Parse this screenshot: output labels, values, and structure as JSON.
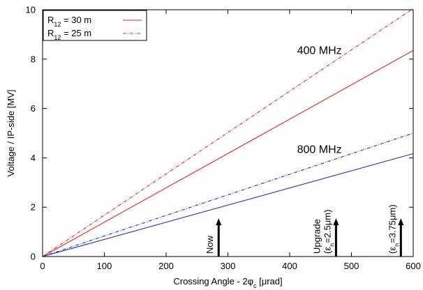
{
  "chart_data": {
    "type": "line",
    "xlabel": "Crossing Angle - 2φc  [μrad]",
    "xlabel_parts": {
      "before": "Crossing Angle - 2φ",
      "sub": "c",
      "after": "  [μrad]"
    },
    "ylabel": "Voltage / IP-side [MV]",
    "xlim": [
      0,
      600
    ],
    "ylim": [
      0,
      10
    ],
    "x_ticks": [
      0,
      100,
      200,
      300,
      400,
      500,
      600
    ],
    "y_ticks": [
      0,
      2,
      4,
      6,
      8,
      10
    ],
    "grid": false,
    "legend_position": "top-left",
    "legend": [
      {
        "label": "R12 = 30 m",
        "main": "R",
        "sub": "12",
        "rest": " = 30 m",
        "style": "solid",
        "color": "#e8231f"
      },
      {
        "label": "R12 = 25 m",
        "main": "R",
        "sub": "12",
        "rest": " = 25 m",
        "style": "dashdot",
        "color": "#e8231f"
      }
    ],
    "series": [
      {
        "group": "400 MHz",
        "radius": "R12 = 30 m",
        "color": "#e8231f",
        "style": "solid",
        "x": [
          0,
          600
        ],
        "y": [
          0,
          8.35
        ]
      },
      {
        "group": "400 MHz",
        "radius": "R12 = 25 m",
        "color": "#e8231f",
        "style": "dashdot",
        "x": [
          0,
          600
        ],
        "y": [
          0,
          10.05
        ]
      },
      {
        "group": "800 MHz",
        "radius": "R12 = 30 m",
        "color": "#1a2ee0",
        "style": "solid",
        "x": [
          0,
          600
        ],
        "y": [
          0,
          4.17
        ]
      },
      {
        "group": "800 MHz",
        "radius": "R12 = 25 m",
        "color": "#1a2ee0",
        "style": "dashdot",
        "x": [
          0,
          600
        ],
        "y": [
          0,
          5.0
        ]
      }
    ],
    "annotations": [
      {
        "text": "400 MHz",
        "x": 412,
        "y": 8.2
      },
      {
        "text": "800 MHz",
        "x": 412,
        "y": 4.2
      }
    ],
    "markers": [
      {
        "x": 285,
        "y_tip": 1.55,
        "lines": [
          {
            "main": "Now"
          }
        ]
      },
      {
        "x": 475,
        "y_tip": 1.55,
        "lines": [
          {
            "main": "Upgrade"
          },
          {
            "pre": "(ε",
            "sub": "n",
            "post": "=2.5μm)"
          }
        ]
      },
      {
        "x": 580,
        "y_tip": 1.55,
        "lines": [
          {
            "pre": "(ε",
            "sub": "n",
            "post": "=3.75μm)"
          }
        ]
      }
    ]
  }
}
